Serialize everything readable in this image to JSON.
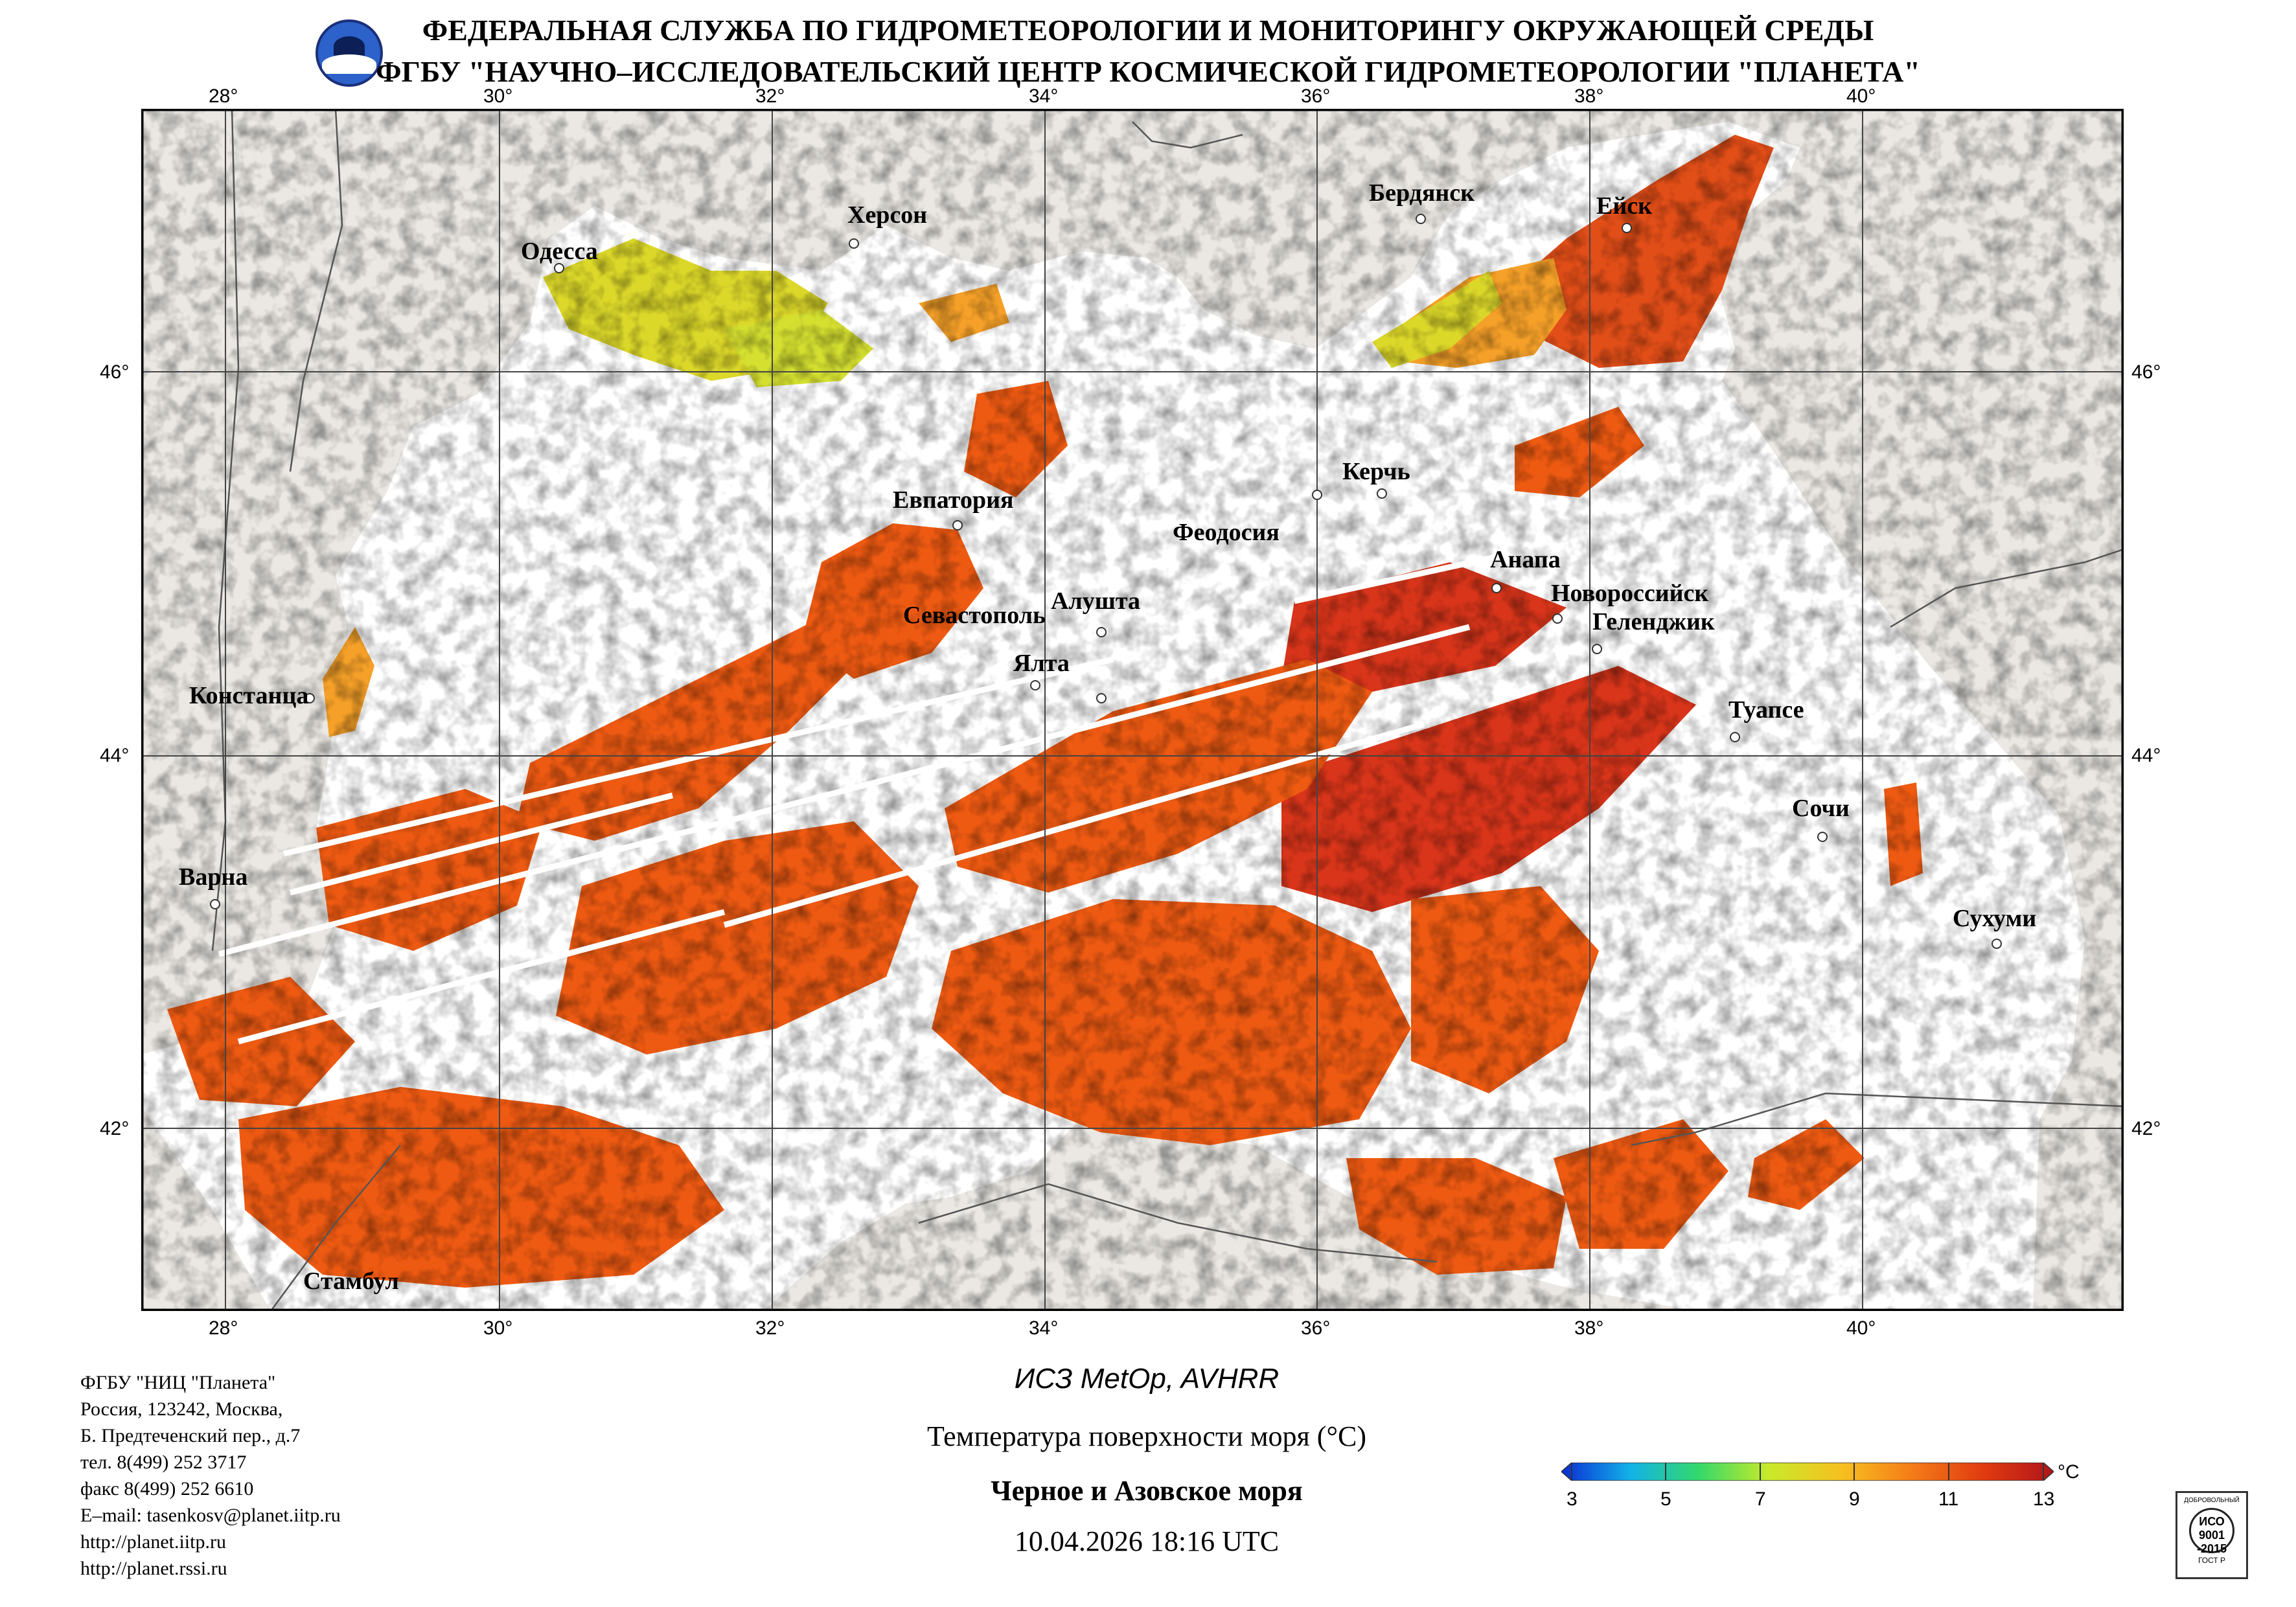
{
  "header": {
    "line1": "ФЕДЕРАЛЬНАЯ СЛУЖБА ПО ГИДРОМЕТЕОРОЛОГИИ И МОНИТОРИНГУ ОКРУЖАЮЩЕЙ СРЕДЫ",
    "line2": "ФГБУ \"НАУЧНО–ИССЛЕДОВАТЕЛЬСКИЙ ЦЕНТР КОСМИЧЕСКОЙ ГИДРОМЕТЕОРОЛОГИИ \"ПЛАНЕТА\"",
    "logo_icon": "planeta-logo-icon"
  },
  "map": {
    "lon_labels": [
      "28°",
      "30°",
      "32°",
      "34°",
      "36°",
      "38°",
      "40°"
    ],
    "lat_labels": [
      "46°",
      "44°",
      "42°"
    ],
    "cities": [
      {
        "name": "Одесса"
      },
      {
        "name": "Херсон"
      },
      {
        "name": "Бердянск"
      },
      {
        "name": "Ейск"
      },
      {
        "name": "Евпатория"
      },
      {
        "name": "Феодосия"
      },
      {
        "name": "Керчь"
      },
      {
        "name": "Анапа"
      },
      {
        "name": "Новороссийск"
      },
      {
        "name": "Геленджик"
      },
      {
        "name": "Севастополь"
      },
      {
        "name": "Алушта"
      },
      {
        "name": "Ялта"
      },
      {
        "name": "Констанца"
      },
      {
        "name": "Туапсе"
      },
      {
        "name": "Сочи"
      },
      {
        "name": "Варна"
      },
      {
        "name": "Сухуми"
      },
      {
        "name": "Стамбул"
      }
    ],
    "colors": {
      "land": "#ebe8e3",
      "cloud": "#ffffff",
      "sst_warm": "#ee5a12",
      "sst_hot": "#d8351a",
      "sst_mid": "#f5a028",
      "sst_cool": "#dcd82a",
      "border": "#555555"
    }
  },
  "footer": {
    "address_lines": [
      "ФГБУ \"НИЦ \"Планета\"",
      "Россия, 123242, Москва,",
      "Б. Предтеченский пер., д.7",
      "тел. 8(499) 252 3717",
      "факс 8(499) 252 6610",
      "E–mail: tasenkosv@planet.iitp.ru",
      "http://planet.iitp.ru",
      "http://planet.rssi.ru"
    ],
    "satellite": "ИСЗ MetOp, AVHRR",
    "product": "Температура поверхности моря (°С)",
    "region": "Черное и Азовское моря",
    "datetime": "10.04.2026 18:16 UTC"
  },
  "colorbar": {
    "unit": "°С",
    "ticks": [
      "3",
      "5",
      "7",
      "9",
      "11",
      "13"
    ],
    "stops": [
      "#0a2bd4",
      "#12b2e8",
      "#34d96a",
      "#c8ea2a",
      "#f7c020",
      "#f57d18",
      "#e03a10",
      "#b0151a"
    ]
  },
  "badge": {
    "line1": "ДОБРОВОЛЬНЫЙ",
    "line2": "ИСО",
    "line3": "9001",
    "line4": "-2015",
    "line5": "ГОСТ Р"
  }
}
